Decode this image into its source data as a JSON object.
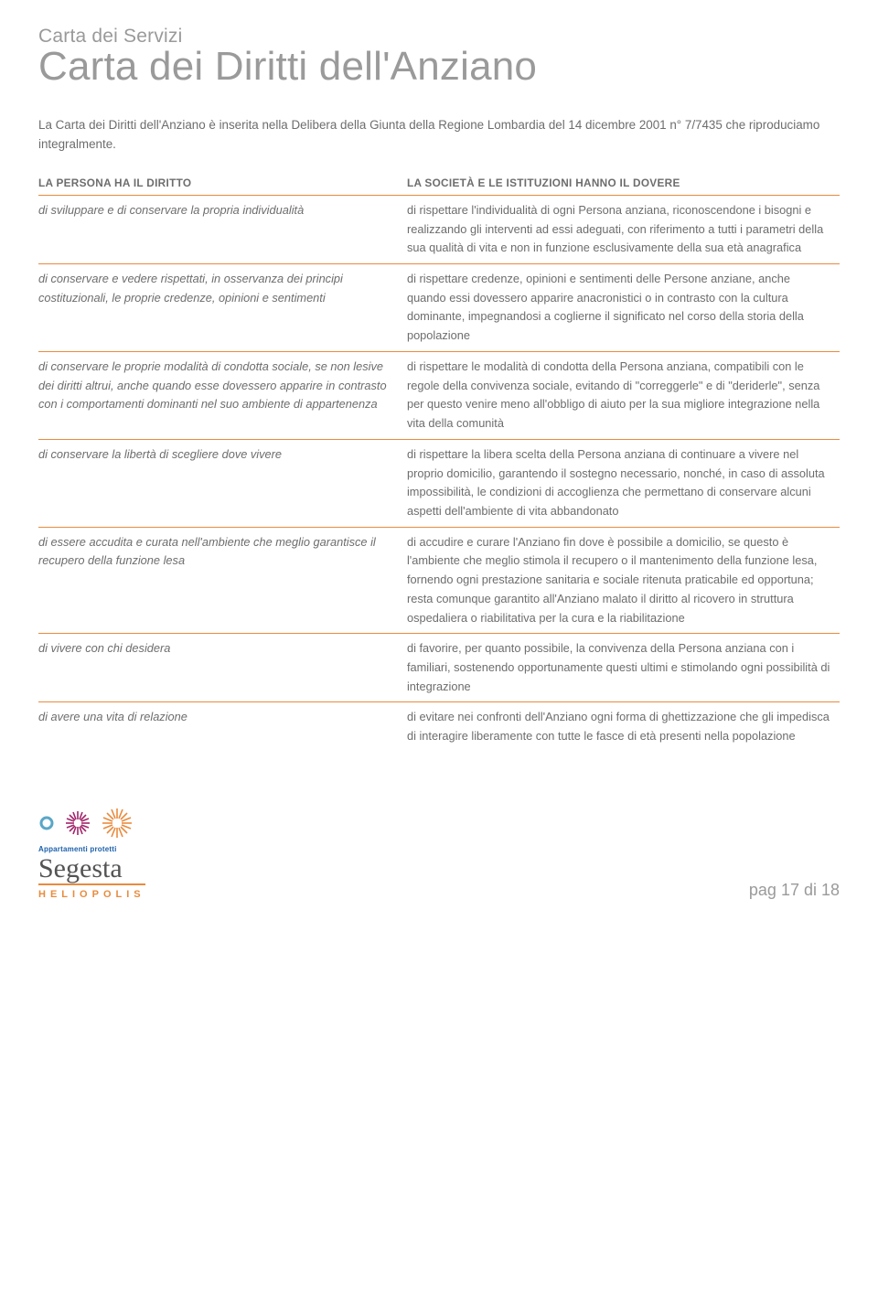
{
  "header": {
    "eyebrow": "Carta dei Servizi",
    "title": "Carta dei Diritti dell'Anziano",
    "intro": "La Carta dei Diritti dell'Anziano è inserita nella Delibera della Giunta della Regione Lombardia del 14 dicembre 2001 n° 7/7435 che riproduciamo integralmente."
  },
  "table": {
    "header_left": "LA PERSONA HA IL DIRITTO",
    "header_right": "LA SOCIETÀ E LE ISTITUZIONI HANNO IL DOVERE",
    "border_color": "#e98b3e",
    "rows": [
      {
        "left": "di sviluppare e di conservare la propria individualità",
        "right": "di rispettare l'individualità di ogni Persona anziana, riconoscendone i bisogni e realizzando gli interventi ad essi adeguati, con riferimento a tutti i parametri della sua qualità di vita e non in funzione esclusivamente della sua età anagrafica"
      },
      {
        "left": "di conservare e vedere rispettati, in osservanza dei principi costituzionali, le proprie credenze, opinioni e sentimenti",
        "right": "di rispettare credenze, opinioni e sentimenti delle Persone anziane, anche quando essi dovessero apparire anacronistici o in contrasto con la cultura dominante, impegnandosi a coglierne il significato nel corso della storia della popolazione"
      },
      {
        "left": "di conservare le proprie modalità di condotta sociale, se non lesive dei diritti altrui, anche quando esse dovessero apparire in contrasto con i comportamenti dominanti nel suo ambiente di appartenenza",
        "right": "di rispettare le modalità di condotta della Persona anziana, compatibili con le regole della convivenza sociale, evitando di \"correggerle\" e di \"deriderle\", senza per questo venire meno all'obbligo di aiuto per la sua migliore integrazione nella vita della comunità"
      },
      {
        "left": "di conservare la libertà di scegliere dove vivere",
        "right": "di rispettare la libera scelta della Persona anziana di continuare a vivere nel proprio domicilio, garantendo il sostegno necessario, nonché, in caso di assoluta impossibilità, le condizioni di accoglienza che permettano di conservare alcuni aspetti dell'ambiente di vita abbandonato"
      },
      {
        "left": "di essere accudita e curata nell'ambiente che meglio garantisce il recupero della funzione lesa",
        "right": "di accudire e curare l'Anziano fin dove è possibile a domicilio, se questo è l'ambiente che meglio stimola il recupero o il mantenimento della funzione lesa, fornendo ogni prestazione sanitaria e sociale ritenuta praticabile ed opportuna; resta comunque garantito all'Anziano malato il diritto al ricovero in struttura ospedaliera o riabilitativa per la cura e la riabilitazione"
      },
      {
        "left": "di vivere con chi desidera",
        "right": "di favorire, per quanto possibile, la convivenza della Persona anziana con i familiari, sostenendo opportunamente questi ultimi e stimolando ogni possibilità di integrazione"
      },
      {
        "left": "di avere una vita di relazione",
        "right": "di evitare nei confronti dell'Anziano ogni forma di ghettizzazione che gli impedisca di interagire liberamente con tutte le fasce di età presenti nella popolazione"
      }
    ]
  },
  "footer": {
    "appt_label": "Appartamenti protetti",
    "brand": "Segesta",
    "subbrand": "HELIOPOLIS",
    "page_label": "pag 17 di 18",
    "icon_colors": {
      "ring": "#5aa7c7",
      "burst1": "#a2246b",
      "burst2": "#e98b3e"
    }
  }
}
